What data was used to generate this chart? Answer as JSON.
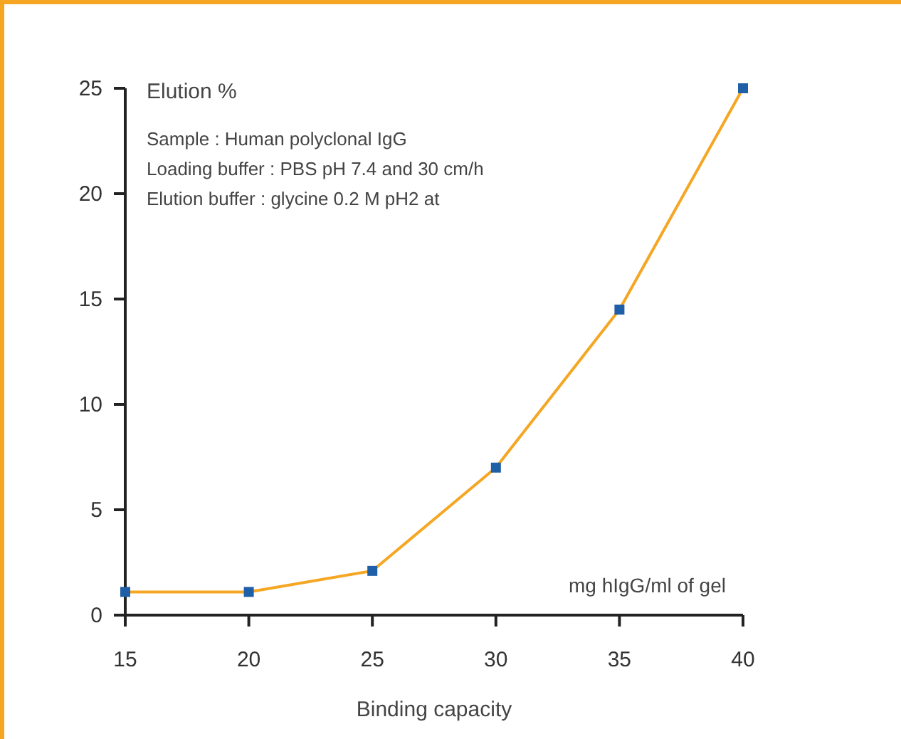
{
  "chart_data": {
    "type": "line",
    "ylabel": "Elution %",
    "xlabel": "Binding capacity",
    "annotations": [
      "Sample : Human polyclonal IgG",
      "Loading buffer : PBS pH 7.4 and 30 cm/h",
      "Elution buffer : glycine 0.2 M pH2 at",
      "mg hIgG/ml of gel"
    ],
    "x": [
      15,
      20,
      25,
      30,
      35,
      40
    ],
    "series": [
      {
        "color": "#f5a623",
        "marker": "none",
        "values": [
          1.1,
          1.1,
          2.1,
          7,
          14.5,
          25
        ]
      },
      {
        "type": "scatter",
        "color": "#1f5fa8",
        "values": [
          1.1,
          1.1,
          2.1,
          7,
          14.5,
          25
        ]
      }
    ],
    "marker": "square",
    "line_style": "solid",
    "grid": false,
    "xlim": [
      15,
      40
    ],
    "xticks": [
      15,
      20,
      25,
      30,
      35,
      40
    ],
    "ylim": [
      0,
      25
    ],
    "yticks": [
      0,
      5,
      10,
      15,
      20,
      25
    ]
  }
}
